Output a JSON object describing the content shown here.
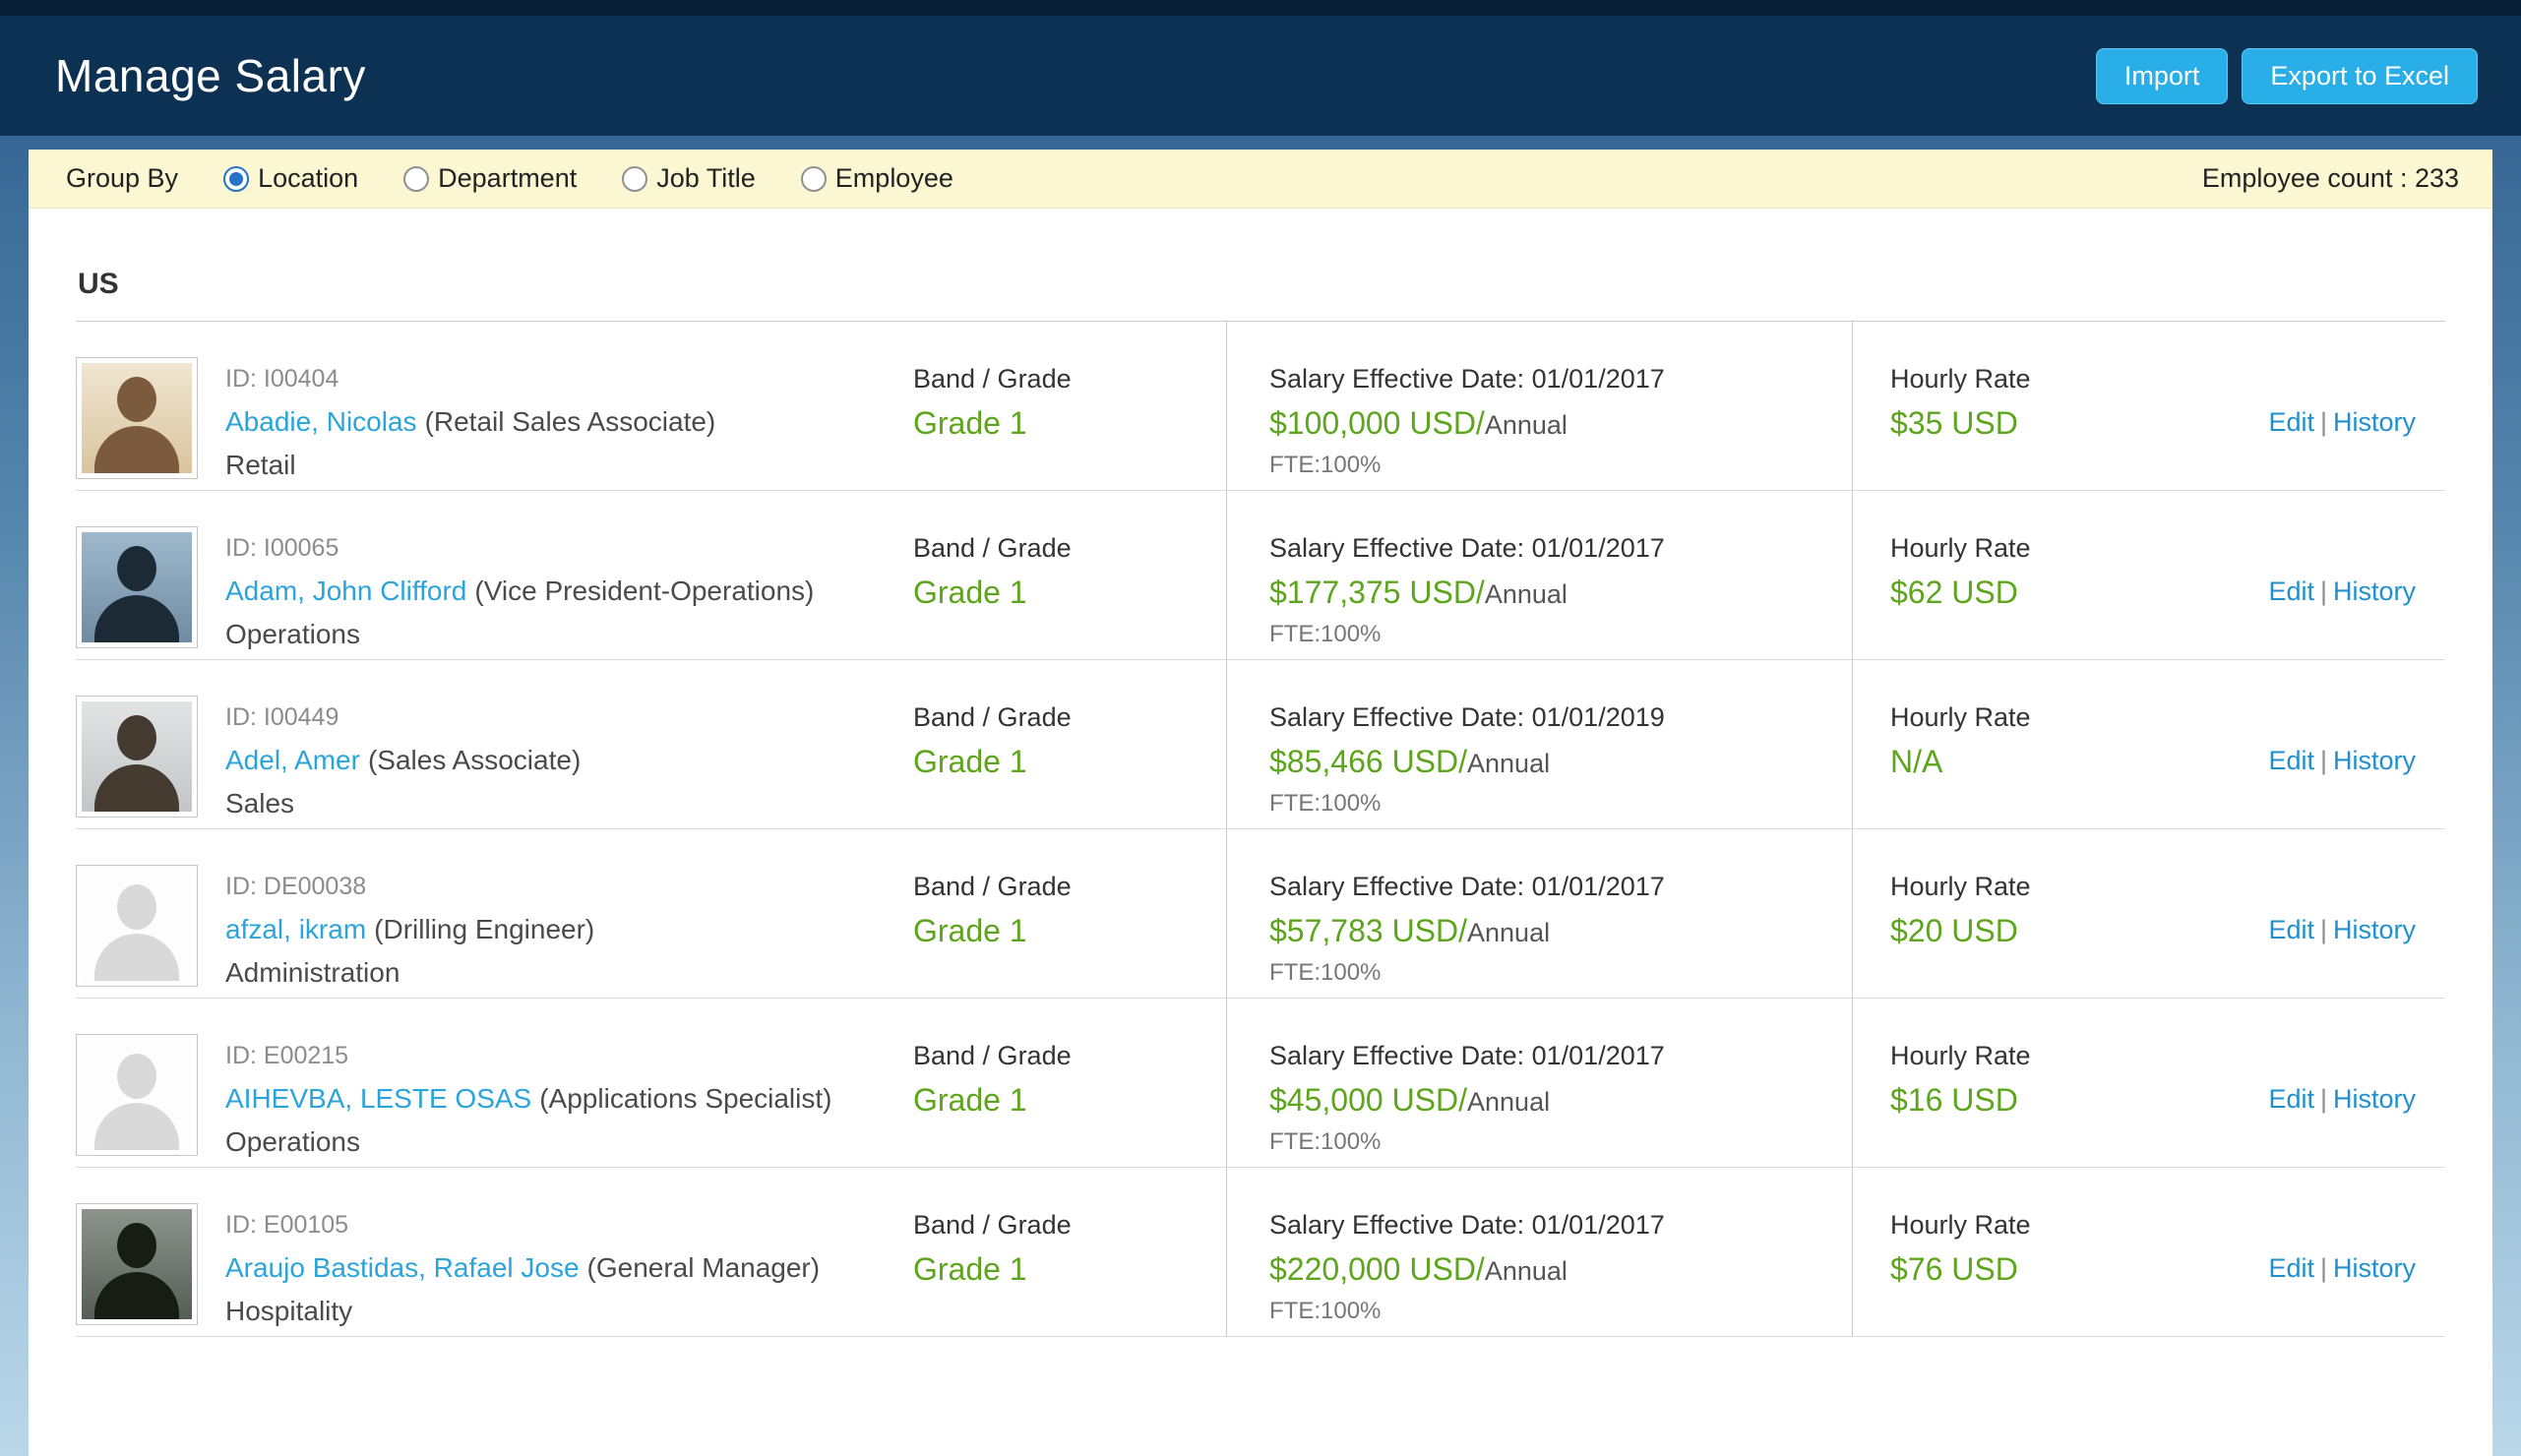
{
  "page": {
    "title": "Manage Salary",
    "buttons": {
      "import": "Import",
      "export": "Export to Excel"
    }
  },
  "colors": {
    "header_bg": "#0c3153",
    "button_bg": "#29aee8",
    "groupbar_bg": "#fbf7d3",
    "value_green": "#5da51c",
    "link_blue": "#2aa4da",
    "action_blue": "#1f8fd0"
  },
  "group_by": {
    "label": "Group By",
    "options": [
      {
        "label": "Location",
        "selected": true
      },
      {
        "label": "Department",
        "selected": false
      },
      {
        "label": "Job Title",
        "selected": false
      },
      {
        "label": "Employee",
        "selected": false
      }
    ],
    "employee_count": "Employee count : 233"
  },
  "group_header": "US",
  "labels": {
    "band_grade": "Band / Grade",
    "hourly_rate": "Hourly Rate",
    "edit": "Edit",
    "separator": "|",
    "history": "History"
  },
  "employees": [
    {
      "id": "ID: I00404",
      "name": "Abadie, Nicolas",
      "job_title": "(Retail Sales Associate)",
      "department": "Retail",
      "grade": "Grade 1",
      "salary_date": "Salary Effective Date: 01/01/2017",
      "salary_amount": "$100,000 USD/",
      "salary_period": "Annual",
      "fte": "FTE:100%",
      "hourly_rate": "$35 USD"
    },
    {
      "id": "ID: I00065",
      "name": "Adam, John Clifford",
      "job_title": "(Vice President-Operations)",
      "department": "Operations",
      "grade": "Grade 1",
      "salary_date": "Salary Effective Date: 01/01/2017",
      "salary_amount": "$177,375 USD/",
      "salary_period": "Annual",
      "fte": "FTE:100%",
      "hourly_rate": "$62 USD"
    },
    {
      "id": "ID: I00449",
      "name": "Adel, Amer",
      "job_title": "(Sales Associate)",
      "department": "Sales",
      "grade": "Grade 1",
      "salary_date": "Salary Effective Date: 01/01/2019",
      "salary_amount": "$85,466 USD/",
      "salary_period": "Annual",
      "fte": "FTE:100%",
      "hourly_rate": "N/A"
    },
    {
      "id": "ID: DE00038",
      "name": "afzal, ikram",
      "job_title": "(Drilling Engineer)",
      "department": "Administration",
      "grade": "Grade 1",
      "salary_date": "Salary Effective Date: 01/01/2017",
      "salary_amount": "$57,783 USD/",
      "salary_period": "Annual",
      "fte": "FTE:100%",
      "hourly_rate": "$20 USD"
    },
    {
      "id": "ID: E00215",
      "name": "AIHEVBA, LESTE OSAS",
      "job_title": "(Applications Specialist)",
      "department": "Operations",
      "grade": "Grade 1",
      "salary_date": "Salary Effective Date: 01/01/2017",
      "salary_amount": "$45,000 USD/",
      "salary_period": "Annual",
      "fte": "FTE:100%",
      "hourly_rate": "$16 USD"
    },
    {
      "id": "ID: E00105",
      "name": "Araujo Bastidas, Rafael Jose",
      "job_title": "(General Manager)",
      "department": "Hospitality",
      "grade": "Grade 1",
      "salary_date": "Salary Effective Date: 01/01/2017",
      "salary_amount": "$220,000 USD/",
      "salary_period": "Annual",
      "fte": "FTE:100%",
      "hourly_rate": "$76 USD"
    }
  ]
}
